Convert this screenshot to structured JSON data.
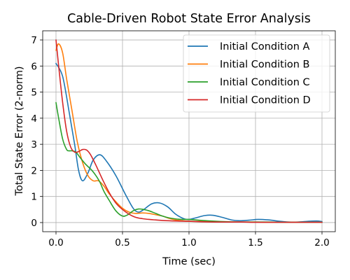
{
  "chart_data": {
    "type": "line",
    "title": "Cable-Driven Robot State Error Analysis",
    "xlabel": "Time (sec)",
    "ylabel": "Total State Error (2-norm)",
    "xlim": [
      -0.1,
      2.1
    ],
    "ylim": [
      -0.35,
      7.35
    ],
    "x_ticks": [
      0.0,
      0.5,
      1.0,
      1.5,
      2.0
    ],
    "x_tick_labels": [
      "0.0",
      "0.5",
      "1.0",
      "1.5",
      "2.0"
    ],
    "y_ticks": [
      0,
      1,
      2,
      3,
      4,
      5,
      6,
      7
    ],
    "y_tick_labels": [
      "0",
      "1",
      "2",
      "3",
      "4",
      "5",
      "6",
      "7"
    ],
    "grid": true,
    "legend_position": "top-right",
    "series": [
      {
        "name": "Initial Condition A",
        "color": "#1f77b4",
        "x": [
          0,
          0.05,
          0.1,
          0.14,
          0.17,
          0.2,
          0.24,
          0.28,
          0.33,
          0.38,
          0.45,
          0.52,
          0.58,
          0.62,
          0.66,
          0.72,
          0.78,
          0.84,
          0.9,
          0.96,
          1.0,
          1.05,
          1.12,
          1.18,
          1.25,
          1.32,
          1.38,
          1.45,
          1.52,
          1.6,
          1.68,
          1.75,
          1.82,
          1.9,
          1.96,
          2.0
        ],
        "y": [
          6.1,
          5.6,
          4.2,
          3.0,
          2.0,
          1.6,
          1.9,
          2.4,
          2.6,
          2.35,
          1.8,
          1.1,
          0.55,
          0.4,
          0.5,
          0.72,
          0.75,
          0.6,
          0.32,
          0.15,
          0.12,
          0.18,
          0.27,
          0.28,
          0.2,
          0.1,
          0.07,
          0.09,
          0.12,
          0.1,
          0.05,
          0.02,
          0.02,
          0.05,
          0.06,
          0.04
        ]
      },
      {
        "name": "Initial Condition B",
        "color": "#ff7f0e",
        "x": [
          0,
          0.02,
          0.05,
          0.08,
          0.12,
          0.16,
          0.2,
          0.24,
          0.28,
          0.32,
          0.36,
          0.4,
          0.45,
          0.5,
          0.55,
          0.6,
          0.65,
          0.7,
          0.75,
          0.8,
          0.85,
          0.9,
          0.95,
          1.0,
          1.1,
          1.2,
          1.3,
          1.4,
          1.5,
          1.6,
          1.7,
          1.8,
          1.9,
          2.0
        ],
        "y": [
          6.6,
          6.85,
          6.5,
          5.5,
          4.3,
          3.1,
          2.3,
          1.8,
          1.6,
          1.6,
          1.4,
          1.1,
          0.8,
          0.55,
          0.4,
          0.35,
          0.37,
          0.35,
          0.3,
          0.25,
          0.16,
          0.1,
          0.07,
          0.05,
          0.04,
          0.03,
          0.02,
          0.02,
          0.02,
          0.01,
          0.01,
          0.01,
          0.01,
          0.01
        ]
      },
      {
        "name": "Initial Condition C",
        "color": "#2ca02c",
        "x": [
          0,
          0.02,
          0.05,
          0.08,
          0.1,
          0.12,
          0.15,
          0.18,
          0.22,
          0.27,
          0.3,
          0.33,
          0.36,
          0.4,
          0.45,
          0.5,
          0.54,
          0.58,
          0.62,
          0.66,
          0.7,
          0.75,
          0.8,
          0.85,
          0.9,
          0.95,
          1.0,
          1.1,
          1.2,
          1.3,
          1.4,
          1.5,
          1.6,
          1.7,
          1.8,
          1.9,
          2.0
        ],
        "y": [
          4.6,
          4.0,
          3.2,
          2.8,
          2.75,
          2.75,
          2.7,
          2.5,
          2.25,
          2.0,
          1.8,
          1.55,
          1.2,
          0.85,
          0.45,
          0.25,
          0.3,
          0.45,
          0.52,
          0.5,
          0.45,
          0.35,
          0.25,
          0.18,
          0.14,
          0.12,
          0.12,
          0.08,
          0.05,
          0.03,
          0.02,
          0.02,
          0.02,
          0.01,
          0.01,
          0.01,
          0.01
        ]
      },
      {
        "name": "Initial Condition D",
        "color": "#d62728",
        "x": [
          0,
          0.02,
          0.05,
          0.08,
          0.11,
          0.14,
          0.17,
          0.2,
          0.23,
          0.26,
          0.3,
          0.35,
          0.4,
          0.45,
          0.5,
          0.55,
          0.6,
          0.65,
          0.7,
          0.75,
          0.8,
          0.9,
          1.0,
          1.1,
          1.2,
          1.3,
          1.4,
          1.5,
          1.6,
          1.7,
          1.8,
          1.9,
          2.0
        ],
        "y": [
          7.0,
          6.0,
          4.6,
          3.5,
          2.9,
          2.7,
          2.72,
          2.8,
          2.78,
          2.6,
          2.2,
          1.65,
          1.15,
          0.75,
          0.5,
          0.32,
          0.2,
          0.15,
          0.12,
          0.1,
          0.08,
          0.06,
          0.05,
          0.03,
          0.02,
          0.02,
          0.02,
          0.01,
          0.01,
          0.01,
          0.01,
          0.01,
          0.01
        ]
      }
    ]
  }
}
